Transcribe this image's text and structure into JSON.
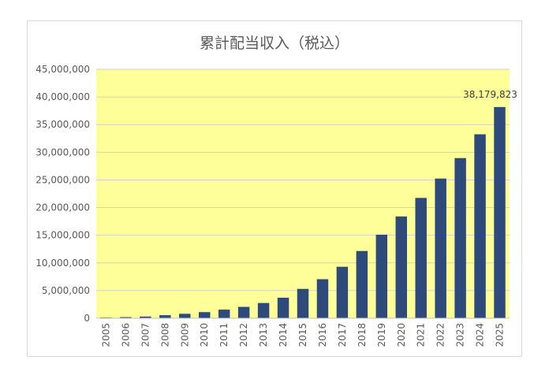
{
  "chart_data": {
    "type": "bar",
    "title": "累計配当収入（税込）",
    "xlabel": "",
    "ylabel": "",
    "categories": [
      "2005",
      "2006",
      "2007",
      "2008",
      "2009",
      "2010",
      "2011",
      "2012",
      "2013",
      "2014",
      "2015",
      "2016",
      "2017",
      "2018",
      "2019",
      "2020",
      "2021",
      "2022",
      "2023",
      "2024",
      "2025"
    ],
    "values": [
      120000,
      200000,
      300000,
      550000,
      800000,
      1100000,
      1550000,
      2050000,
      2750000,
      3700000,
      5300000,
      7050000,
      9300000,
      12150000,
      15100000,
      18400000,
      21750000,
      25250000,
      28950000,
      33250000,
      38179823
    ],
    "ylim": [
      0,
      45000000
    ],
    "yticks": [
      0,
      5000000,
      10000000,
      15000000,
      20000000,
      25000000,
      30000000,
      35000000,
      40000000,
      45000000
    ],
    "ytick_labels": [
      "0",
      "5,000,000",
      "10,000,000",
      "15,000,000",
      "20,000,000",
      "25,000,000",
      "30,000,000",
      "35,000,000",
      "40,000,000",
      "45,000,000"
    ],
    "data_labels": [
      {
        "category": "2025",
        "text": "38,179,823"
      }
    ],
    "colors": {
      "bar": "#2e4a7a",
      "plot_background": "#ffff99",
      "gridline": "#d0d0d0",
      "axis": "#bfbfbf",
      "text": "#595959"
    },
    "grid": true,
    "legend": "none"
  }
}
